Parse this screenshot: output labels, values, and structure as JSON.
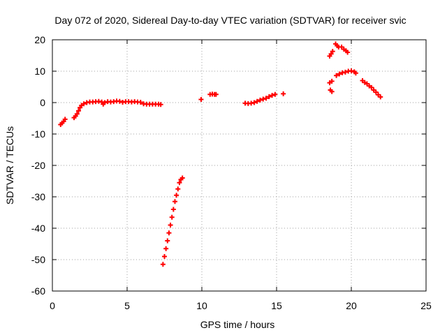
{
  "chart_data": {
    "type": "scatter",
    "title": "Day 072 of 2020, Sidereal Day-to-day VTEC variation (SDTVAR) for receiver svic",
    "xlabel": "GPS time / hours",
    "ylabel": "SDTVAR / TECUs",
    "xlim": [
      0,
      25
    ],
    "ylim": [
      -60,
      20
    ],
    "xticks": [
      0,
      5,
      10,
      15,
      20,
      25
    ],
    "yticks": [
      -60,
      -50,
      -40,
      -30,
      -20,
      -10,
      0,
      10,
      20
    ],
    "grid": true,
    "marker": "plus",
    "colors": {
      "series": "#ff0000",
      "grid": "#a0a0a0",
      "frame": "#000000"
    },
    "series": [
      {
        "points": [
          [
            0.55,
            -7.0
          ],
          [
            0.65,
            -6.5
          ],
          [
            0.75,
            -6.0
          ],
          [
            0.85,
            -5.3
          ],
          [
            1.45,
            -4.8
          ],
          [
            1.55,
            -4.3
          ],
          [
            1.65,
            -3.6
          ],
          [
            1.75,
            -2.6
          ],
          [
            1.85,
            -1.6
          ],
          [
            1.95,
            -0.9
          ],
          [
            2.1,
            -0.4
          ],
          [
            2.3,
            0.0
          ],
          [
            2.5,
            0.2
          ],
          [
            2.7,
            0.2
          ],
          [
            2.9,
            0.3
          ],
          [
            3.1,
            0.4
          ],
          [
            3.3,
            0.2
          ],
          [
            3.4,
            -0.5
          ],
          [
            3.5,
            0.0
          ],
          [
            3.7,
            0.3
          ],
          [
            3.9,
            0.2
          ],
          [
            4.1,
            0.3
          ],
          [
            4.3,
            0.5
          ],
          [
            4.5,
            0.4
          ],
          [
            4.7,
            0.1
          ],
          [
            4.9,
            0.3
          ],
          [
            5.1,
            0.3
          ],
          [
            5.3,
            0.2
          ],
          [
            5.5,
            0.3
          ],
          [
            5.7,
            0.2
          ],
          [
            5.9,
            0.1
          ],
          [
            6.1,
            -0.4
          ],
          [
            6.3,
            -0.5
          ],
          [
            6.5,
            -0.5
          ],
          [
            6.7,
            -0.5
          ],
          [
            6.9,
            -0.5
          ],
          [
            7.1,
            -0.5
          ],
          [
            7.25,
            -0.6
          ],
          [
            7.4,
            -51.5
          ],
          [
            7.5,
            -49.0
          ],
          [
            7.6,
            -46.5
          ],
          [
            7.7,
            -44.0
          ],
          [
            7.8,
            -41.5
          ],
          [
            7.9,
            -39.0
          ],
          [
            8.0,
            -36.5
          ],
          [
            8.1,
            -34.0
          ],
          [
            8.2,
            -31.5
          ],
          [
            8.3,
            -29.5
          ],
          [
            8.4,
            -27.5
          ],
          [
            8.5,
            -25.5
          ],
          [
            8.6,
            -24.5
          ],
          [
            8.7,
            -24.0
          ],
          [
            9.95,
            1.0
          ],
          [
            10.55,
            2.6
          ],
          [
            10.7,
            2.7
          ],
          [
            10.85,
            2.6
          ],
          [
            10.95,
            2.6
          ],
          [
            12.9,
            -0.2
          ],
          [
            13.1,
            -0.3
          ],
          [
            13.3,
            -0.2
          ],
          [
            13.5,
            0.0
          ],
          [
            13.7,
            0.4
          ],
          [
            13.9,
            0.8
          ],
          [
            14.1,
            1.1
          ],
          [
            14.3,
            1.4
          ],
          [
            14.5,
            1.9
          ],
          [
            14.7,
            2.3
          ],
          [
            14.9,
            2.6
          ],
          [
            15.45,
            2.8
          ],
          [
            18.55,
            14.8
          ],
          [
            18.65,
            15.5
          ],
          [
            18.75,
            16.3
          ],
          [
            18.55,
            6.3
          ],
          [
            18.7,
            6.8
          ],
          [
            18.6,
            4.0
          ],
          [
            18.7,
            3.5
          ],
          [
            18.95,
            18.7
          ],
          [
            19.05,
            18.1
          ],
          [
            19.15,
            17.7
          ],
          [
            19.35,
            17.7
          ],
          [
            19.5,
            17.0
          ],
          [
            19.65,
            16.5
          ],
          [
            19.75,
            16.0
          ],
          [
            19.0,
            8.6
          ],
          [
            19.2,
            9.1
          ],
          [
            19.4,
            9.5
          ],
          [
            19.6,
            9.7
          ],
          [
            19.8,
            10.0
          ],
          [
            20.0,
            10.1
          ],
          [
            20.2,
            9.8
          ],
          [
            20.3,
            9.4
          ],
          [
            20.75,
            7.0
          ],
          [
            20.9,
            6.4
          ],
          [
            21.05,
            6.0
          ],
          [
            21.2,
            5.3
          ],
          [
            21.35,
            4.8
          ],
          [
            21.5,
            4.0
          ],
          [
            21.65,
            3.3
          ],
          [
            21.8,
            2.5
          ],
          [
            21.95,
            1.8
          ]
        ]
      }
    ]
  }
}
